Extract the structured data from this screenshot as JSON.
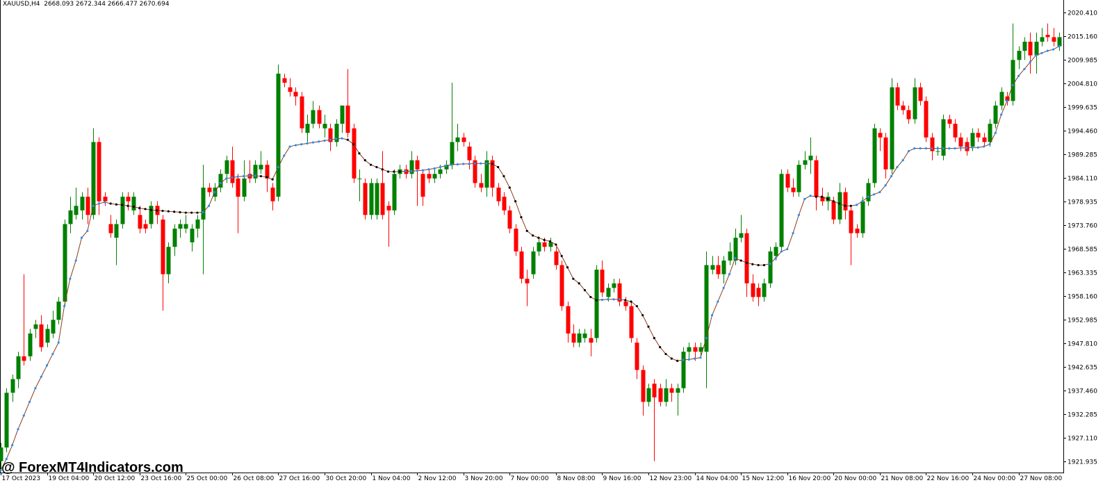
{
  "header": "XAUUSD,H4  2668.093 2672.344 2666.477 2670.694",
  "watermark": "@ ForexMT4Indicators.com",
  "chart_data": {
    "type": "candlestick",
    "bull_color": "#008000",
    "bear_color": "#ff0000",
    "xlim": [
      -0.12,
      183.5
    ],
    "ylim": [
      1919.5,
      2023.15
    ],
    "xticks": [
      {
        "value": 0,
        "label": "17 Oct 2023"
      },
      {
        "value": 8,
        "label": "19 Oct 04:00"
      },
      {
        "value": 16,
        "label": "20 Oct 12:00"
      },
      {
        "value": 24,
        "label": "23 Oct 16:00"
      },
      {
        "value": 32,
        "label": "25 Oct 00:00"
      },
      {
        "value": 40,
        "label": "26 Oct 08:00"
      },
      {
        "value": 48,
        "label": "27 Oct 16:00"
      },
      {
        "value": 56,
        "label": "30 Oct 20:00"
      },
      {
        "value": 64,
        "label": "1 Nov 04:00"
      },
      {
        "value": 72,
        "label": "2 Nov 12:00"
      },
      {
        "value": 80,
        "label": "3 Nov 20:00"
      },
      {
        "value": 88,
        "label": "7 Nov 00:00"
      },
      {
        "value": 96,
        "label": "8 Nov 08:00"
      },
      {
        "value": 104,
        "label": "9 Nov 16:00"
      },
      {
        "value": 112,
        "label": "12 Nov 23:00"
      },
      {
        "value": 120,
        "label": "14 Nov 04:00"
      },
      {
        "value": 128,
        "label": "15 Nov 12:00"
      },
      {
        "value": 136,
        "label": "16 Nov 20:00"
      },
      {
        "value": 144,
        "label": "20 Nov 00:00"
      },
      {
        "value": 152,
        "label": "21 Nov 08:00"
      },
      {
        "value": 160,
        "label": "22 Nov 16:00"
      },
      {
        "value": 168,
        "label": "24 Nov 00:00"
      },
      {
        "value": 176,
        "label": "27 Nov 08:00"
      }
    ],
    "yticks": [
      {
        "value": 2020.41,
        "label": "2020.410"
      },
      {
        "value": 2015.16,
        "label": "2015.160"
      },
      2009.985,
      {
        "value": 2004.81,
        "label": "2004.810"
      },
      1999.635,
      {
        "value": 1994.46,
        "label": "1994.460"
      },
      1989.285,
      {
        "value": 1984.11,
        "label": "1984.110"
      },
      1978.935,
      {
        "value": 1973.76,
        "label": "1973.760"
      },
      1968.585,
      1963.335,
      {
        "value": 1958.16,
        "label": "1958.160"
      },
      1952.985,
      {
        "value": 1947.81,
        "label": "1947.810"
      },
      1942.635,
      {
        "value": 1937.46,
        "label": "1937.460"
      },
      1932.285,
      {
        "value": 1927.11,
        "label": "1927.110"
      },
      1921.935
    ],
    "ohlc": [
      [
        1922,
        1926,
        1920,
        1925
      ],
      [
        1925,
        1938,
        1924,
        1937
      ],
      [
        1937,
        1941,
        1935,
        1940
      ],
      [
        1940,
        1946,
        1938,
        1945
      ],
      [
        1945,
        1963,
        1943,
        1944
      ],
      [
        1945,
        1951,
        1944,
        1950
      ],
      [
        1951,
        1953,
        1949,
        1952
      ],
      [
        1952,
        1954,
        1946,
        1947
      ],
      [
        1948,
        1952,
        1947,
        1951
      ],
      [
        1950,
        1955,
        1949,
        1953
      ],
      [
        1953,
        1958,
        1952,
        1957
      ],
      [
        1957,
        1975,
        1956,
        1974
      ],
      [
        1974,
        1980,
        1972,
        1977
      ],
      [
        1976,
        1982,
        1975,
        1978
      ],
      [
        1977,
        1981,
        1975,
        1980
      ],
      [
        1980,
        1982,
        1974,
        1976
      ],
      [
        1976,
        1995,
        1975,
        1992
      ],
      [
        1992,
        1993,
        1976,
        1979
      ],
      [
        1980,
        1981,
        1978,
        1979
      ],
      [
        1974,
        1976,
        1971,
        1972
      ],
      [
        1971,
        1975,
        1965,
        1974
      ],
      [
        1974,
        1981,
        1973,
        1980
      ],
      [
        1980,
        1981,
        1977,
        1979
      ],
      [
        1977,
        1981,
        1976,
        1980
      ],
      [
        1976,
        1978,
        1972,
        1973
      ],
      [
        1974,
        1975,
        1972,
        1973
      ],
      [
        1974,
        1979,
        1973,
        1978
      ],
      [
        1978,
        1979,
        1974,
        1976
      ],
      [
        1975,
        1976,
        1955,
        1963
      ],
      [
        1963,
        1970,
        1961,
        1969
      ],
      [
        1969,
        1974,
        1967,
        1973
      ],
      [
        1973,
        1975,
        1971,
        1974
      ],
      [
        1973,
        1976,
        1972,
        1974
      ],
      [
        1970,
        1974,
        1968,
        1973
      ],
      [
        1973,
        1976,
        1971,
        1975
      ],
      [
        1975,
        1987,
        1963,
        1982
      ],
      [
        1982,
        1983,
        1980,
        1981
      ],
      [
        1980,
        1983,
        1979,
        1982
      ],
      [
        1982,
        1986,
        1981,
        1985
      ],
      [
        1985,
        1989,
        1983,
        1988
      ],
      [
        1988,
        1991,
        1982,
        1983
      ],
      [
        1984,
        1985,
        1972,
        1980
      ],
      [
        1980,
        1988,
        1979,
        1984
      ],
      [
        1985,
        1988,
        1983,
        1984
      ],
      [
        1984,
        1988,
        1983,
        1987
      ],
      [
        1986,
        1990,
        1985,
        1987
      ],
      [
        1987,
        1988,
        1981,
        1984
      ],
      [
        1982,
        1983,
        1977,
        1979
      ],
      [
        1980,
        2009,
        1979,
        2007
      ],
      [
        2006,
        2007,
        2004,
        2005
      ],
      [
        2004,
        2006,
        2002,
        2003
      ],
      [
        2003,
        2004,
        2000,
        2002
      ],
      [
        2002,
        2003,
        1994,
        1995
      ],
      [
        1994,
        1998,
        1992,
        1996
      ],
      [
        1996,
        2001,
        1995,
        1999
      ],
      [
        1999,
        2000,
        1995,
        1996
      ],
      [
        1995,
        1998,
        1993,
        1996
      ],
      [
        1995,
        1996,
        1990,
        1992
      ],
      [
        1992,
        1997,
        1991,
        1996
      ],
      [
        1996,
        2000,
        1994,
        2000
      ],
      [
        2000,
        2008,
        1993,
        1994
      ],
      [
        1995,
        1996,
        1983,
        1984
      ],
      [
        1984,
        1986,
        1979,
        1984
      ],
      [
        1983,
        1984,
        1975,
        1976
      ],
      [
        1976,
        1984,
        1975,
        1983
      ],
      [
        1976,
        1984,
        1975,
        1983
      ],
      [
        1983,
        1990,
        1975,
        1976
      ],
      [
        1978,
        1979,
        1969,
        1977
      ],
      [
        1977,
        1986,
        1976,
        1985
      ],
      [
        1985,
        1987,
        1984,
        1986
      ],
      [
        1986,
        1987,
        1984,
        1985
      ],
      [
        1985,
        1990,
        1984,
        1988
      ],
      [
        1988,
        1989,
        1978,
        1986
      ],
      [
        1985,
        1986,
        1978,
        1980
      ],
      [
        1985,
        1986,
        1983,
        1984
      ],
      [
        1984,
        1986,
        1983,
        1985
      ],
      [
        1985,
        1987,
        1984,
        1986
      ],
      [
        1986,
        1988,
        1985,
        1987
      ],
      [
        1987,
        2005,
        1986,
        1992
      ],
      [
        1992,
        1996,
        1990,
        1993
      ],
      [
        1993,
        1994,
        1991,
        1992
      ],
      [
        1991,
        1992,
        1986,
        1988
      ],
      [
        1988,
        1989,
        1982,
        1983
      ],
      [
        1983,
        1985,
        1981,
        1982
      ],
      [
        1982,
        1990,
        1980,
        1988
      ],
      [
        1988,
        1989,
        1980,
        1982
      ],
      [
        1982,
        1983,
        1978,
        1979
      ],
      [
        1980,
        1981,
        1976,
        1977
      ],
      [
        1977,
        1978,
        1972,
        1973
      ],
      [
        1973,
        1974,
        1967,
        1968
      ],
      [
        1968,
        1969,
        1961,
        1962
      ],
      [
        1962,
        1964,
        1956,
        1961
      ],
      [
        1963,
        1969,
        1962,
        1968
      ],
      [
        1968,
        1971,
        1967,
        1970
      ],
      [
        1970,
        1971,
        1968,
        1969
      ],
      [
        1969,
        1971,
        1968,
        1970
      ],
      [
        1968,
        1969,
        1964,
        1965
      ],
      [
        1965,
        1966,
        1955,
        1956
      ],
      [
        1956,
        1957,
        1948,
        1950
      ],
      [
        1950,
        1952,
        1947,
        1948
      ],
      [
        1948,
        1951,
        1947,
        1950
      ],
      [
        1949,
        1951,
        1948,
        1950
      ],
      [
        1949,
        1951,
        1945,
        1948
      ],
      [
        1949,
        1965,
        1948,
        1964
      ],
      [
        1964,
        1966,
        1958,
        1959
      ],
      [
        1958,
        1961,
        1957,
        1960
      ],
      [
        1960,
        1962,
        1959,
        1961
      ],
      [
        1961,
        1962,
        1956,
        1957
      ],
      [
        1957,
        1958,
        1955,
        1956
      ],
      [
        1956,
        1957,
        1948,
        1949
      ],
      [
        1948,
        1949,
        1940,
        1942
      ],
      [
        1942,
        1943,
        1932,
        1935
      ],
      [
        1935,
        1939,
        1934,
        1938
      ],
      [
        1939,
        1940,
        1922,
        1936
      ],
      [
        1938,
        1939,
        1934,
        1935
      ],
      [
        1935,
        1940,
        1934,
        1938
      ],
      [
        1938,
        1939,
        1935,
        1937
      ],
      [
        1937,
        1939,
        1932,
        1938
      ],
      [
        1938,
        1947,
        1937,
        1946
      ],
      [
        1946,
        1948,
        1944,
        1947
      ],
      [
        1947,
        1948,
        1944,
        1946
      ],
      [
        1946,
        1948,
        1945,
        1947
      ],
      [
        1946,
        1968,
        1938,
        1965
      ],
      [
        1964,
        1967,
        1963,
        1965
      ],
      [
        1965,
        1967,
        1962,
        1963
      ],
      [
        1963,
        1967,
        1961,
        1966
      ],
      [
        1966,
        1970,
        1965,
        1968
      ],
      [
        1966,
        1973,
        1965,
        1971
      ],
      [
        1971,
        1976,
        1970,
        1972
      ],
      [
        1972,
        1973,
        1958,
        1961
      ],
      [
        1961,
        1963,
        1957,
        1958
      ],
      [
        1960,
        1961,
        1956,
        1958
      ],
      [
        1958,
        1962,
        1957,
        1961
      ],
      [
        1961,
        1969,
        1960,
        1968
      ],
      [
        1967,
        1970,
        1966,
        1969
      ],
      [
        1969,
        1986,
        1968,
        1985
      ],
      [
        1985,
        1986,
        1981,
        1982
      ],
      [
        1982,
        1984,
        1980,
        1981
      ],
      [
        1981,
        1988,
        1980,
        1987
      ],
      [
        1987,
        1990,
        1986,
        1988
      ],
      [
        1988,
        1993,
        1985,
        1989
      ],
      [
        1988,
        1989,
        1977,
        1980
      ],
      [
        1980,
        1982,
        1978,
        1979
      ],
      [
        1979,
        1981,
        1977,
        1980
      ],
      [
        1979,
        1980,
        1974,
        1975
      ],
      [
        1975,
        1983,
        1974,
        1981
      ],
      [
        1981,
        1982,
        1975,
        1977
      ],
      [
        1977,
        1978,
        1965,
        1972
      ],
      [
        1973,
        1974,
        1971,
        1972
      ],
      [
        1972,
        1980,
        1971,
        1979
      ],
      [
        1979,
        1984,
        1978,
        1983
      ],
      [
        1983,
        1996,
        1982,
        1995
      ],
      [
        1994,
        1995,
        1990,
        1993
      ],
      [
        1993,
        1994,
        1984,
        1986
      ],
      [
        1986,
        2006,
        1985,
        2004
      ],
      [
        2004,
        2005,
        1999,
        2000
      ],
      [
        2000,
        2001,
        1998,
        1999
      ],
      [
        1999,
        2000,
        1996,
        1997
      ],
      [
        1997,
        2006,
        1996,
        2004
      ],
      [
        2004,
        2005,
        2000,
        2001
      ],
      [
        2001,
        2002,
        1992,
        1993
      ],
      [
        1993,
        1994,
        1988,
        1990
      ],
      [
        1990,
        1991,
        1989,
        1990
      ],
      [
        1989,
        1998,
        1988,
        1997
      ],
      [
        1997,
        1998,
        1995,
        1996
      ],
      [
        1996,
        1997,
        1992,
        1993
      ],
      [
        1993,
        1994,
        1990,
        1991
      ],
      [
        1992,
        1993,
        1989,
        1990
      ],
      [
        1991,
        1995,
        1990,
        1994
      ],
      [
        1994,
        1995,
        1992,
        1993
      ],
      [
        1993,
        1994,
        1991,
        1992
      ],
      [
        1992,
        1997,
        1991,
        1996
      ],
      [
        1996,
        2001,
        1995,
        2000
      ],
      [
        2000,
        2004,
        1999,
        2003
      ],
      [
        2002,
        2003,
        2000,
        2001
      ],
      [
        2001,
        2018,
        2000,
        2010
      ],
      [
        2010,
        2013,
        2008,
        2012
      ],
      [
        2012,
        2015,
        2010,
        2014
      ],
      [
        2014,
        2016,
        2007,
        2011
      ],
      [
        2011,
        2016,
        2007,
        2014
      ],
      [
        2014,
        2017,
        2013,
        2015
      ],
      [
        2015.5,
        2018,
        2014,
        2015
      ],
      [
        2015,
        2017,
        2013,
        2014
      ],
      [
        2013,
        2016,
        2012,
        2015
      ]
    ],
    "ma": {
      "line_color": "#8b3a1a",
      "up_color": "#1e90ff",
      "down_color": "#000000",
      "values": [
        1920,
        1922.5,
        1925.5,
        1929,
        1932,
        1935,
        1938,
        1940.5,
        1943,
        1945.5,
        1948,
        1956,
        1962,
        1966,
        1971,
        1972.5,
        1978,
        1978.5,
        1978.8,
        1978.5,
        1978.3,
        1978.2,
        1978,
        1977.8,
        1977.5,
        1977.3,
        1977.1,
        1977,
        1976.9,
        1976.8,
        1976.7,
        1976.6,
        1976.5,
        1976.5,
        1976.5,
        1976.6,
        1978,
        1981,
        1983,
        1984,
        1984.2,
        1984.4,
        1984.5,
        1984.6,
        1984.6,
        1984.5,
        1984.3,
        1983.8,
        1986.5,
        1989,
        1991,
        1991.3,
        1991.5,
        1991.7,
        1991.9,
        1992.1,
        1992.3,
        1992.5,
        1992.7,
        1992.8,
        1992.5,
        1991.5,
        1989.5,
        1988,
        1987,
        1986.5,
        1986,
        1985.5,
        1985.5,
        1985.5,
        1985.6,
        1985.6,
        1985.7,
        1985.8,
        1986,
        1986.2,
        1986.5,
        1986.8,
        1987,
        1987.1,
        1987.2,
        1987.2,
        1987.3,
        1987.3,
        1987.3,
        1987.2,
        1986.5,
        1984.5,
        1982,
        1979,
        1975.5,
        1972.5,
        1971.5,
        1971,
        1970.5,
        1970.2,
        1969.5,
        1967,
        1964.5,
        1962,
        1961,
        1959.5,
        1958,
        1957.3,
        1957.4,
        1957.5,
        1957.5,
        1957.5,
        1957.3,
        1957,
        1956,
        1954,
        1951.5,
        1949,
        1947,
        1945.5,
        1944.5,
        1944,
        1944.2,
        1944.3,
        1944.5,
        1944.7,
        1949,
        1954,
        1957,
        1960,
        1963,
        1966.5,
        1966,
        1965.5,
        1965.2,
        1965,
        1965,
        1965.3,
        1966.5,
        1968,
        1968.5,
        1972,
        1976,
        1979.5,
        1980.2,
        1980,
        1980,
        1979.5,
        1979,
        1978.5,
        1978,
        1978,
        1978.2,
        1979,
        1980,
        1980.5,
        1981,
        1982.5,
        1984.5,
        1986.5,
        1988,
        1990,
        1990.6,
        1990.6,
        1990.6,
        1990.6,
        1990.6,
        1990.6,
        1990.6,
        1990.6,
        1990.7,
        1990.7,
        1990.8,
        1990.8,
        1991,
        1991.5,
        1994,
        1998,
        2001,
        2004.5,
        2006.5,
        2008,
        2009.5,
        2011,
        2011.5,
        2012,
        2012.3,
        2013
      ]
    }
  }
}
